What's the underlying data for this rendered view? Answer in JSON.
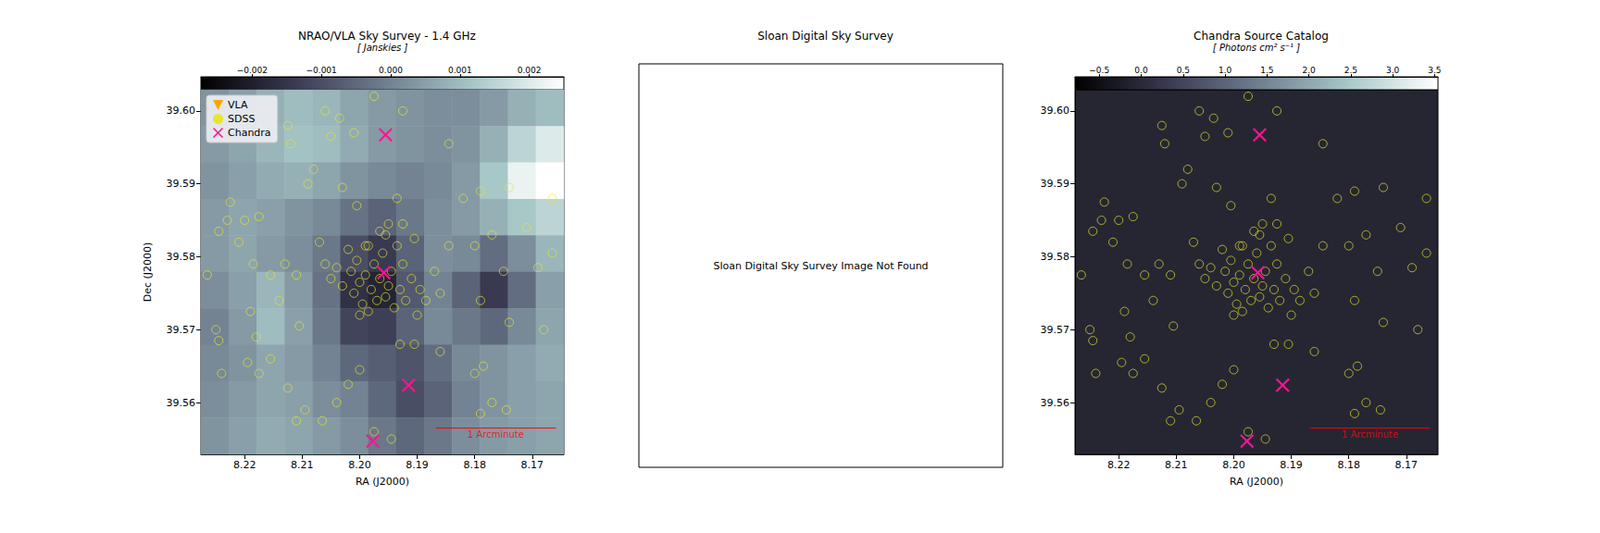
{
  "chart_data": [
    {
      "type": "scatter",
      "title": "NRAO/VLA Sky Survey - 1.4 GHz",
      "x_label": "RA (J2000)",
      "y_label": "Dec (J2000)",
      "xlim": [
        8.2276,
        8.1645
      ],
      "ylim": [
        39.5529,
        39.6029
      ],
      "xticks": [
        8.22,
        8.21,
        {
          "value": 8.2,
          "label": "8.20"
        },
        8.19,
        8.18,
        8.17
      ],
      "yticks": [
        39.56,
        39.57,
        39.58,
        39.59,
        {
          "value": 39.6,
          "label": "39.60"
        }
      ],
      "grid": false,
      "legend": "upper left",
      "series": [
        {
          "name": "VLA",
          "color": "#ffa500",
          "marker": "triangle-down",
          "x": [],
          "y": []
        },
        {
          "name": "SDSS",
          "color": "#e6e62a",
          "marker": "circle",
          "x": [
            8.2125,
            8.212,
            8.206,
            8.205,
            8.2035,
            8.201,
            8.1975,
            8.1925,
            8.1845,
            8.208,
            8.209,
            8.203,
            8.2005,
            8.1935,
            8.182,
            8.179,
            8.174,
            8.1665,
            8.1955,
            8.1925,
            8.1905,
            8.2245,
            8.2225,
            8.223,
            8.22,
            8.2175,
            8.2185,
            8.221,
            8.2265,
            8.225,
            8.2245,
            8.219,
            8.218,
            8.2155,
            8.214,
            8.213,
            8.211,
            8.2105,
            8.2175,
            8.2195,
            8.224,
            8.2125,
            8.2155,
            8.2095,
            8.211,
            8.207,
            8.206,
            8.205,
            8.204,
            8.203,
            8.202,
            8.2015,
            8.201,
            8.2005,
            8.2,
            8.1995,
            8.199,
            8.1985,
            8.198,
            8.1975,
            8.197,
            8.1965,
            8.196,
            8.1955,
            8.195,
            8.1945,
            8.194,
            8.193,
            8.1925,
            8.192,
            8.191,
            8.19,
            8.1895,
            8.1885,
            8.187,
            8.186,
            8.2,
            8.1985,
            8.1935,
            8.1965,
            8.195,
            8.199,
            8.1845,
            8.18,
            8.177,
            8.179,
            8.171,
            8.169,
            8.168,
            8.174,
            8.1665,
            8.175,
            8.2,
            8.193,
            8.1905,
            8.186,
            8.18,
            8.1785,
            8.177,
            8.179,
            8.1745,
            8.204,
            8.202,
            8.1975,
            8.1945,
            8.2065
          ],
          "y": [
            39.598,
            39.5955,
            39.6,
            39.5965,
            39.599,
            39.597,
            39.602,
            39.6,
            39.5955,
            39.592,
            39.59,
            39.5895,
            39.587,
            39.588,
            39.588,
            39.589,
            39.5895,
            39.588,
            39.583,
            39.5845,
            39.5825,
            39.5835,
            39.5875,
            39.585,
            39.585,
            39.5855,
            39.579,
            39.582,
            39.5775,
            39.57,
            39.5685,
            39.5725,
            39.569,
            39.5775,
            39.574,
            39.579,
            39.5775,
            39.5705,
            39.564,
            39.5655,
            39.564,
            39.562,
            39.566,
            39.559,
            39.5575,
            39.582,
            39.579,
            39.577,
            39.5785,
            39.576,
            39.581,
            39.578,
            39.575,
            39.5795,
            39.5765,
            39.5735,
            39.5775,
            39.5815,
            39.5755,
            39.579,
            39.574,
            39.577,
            39.5805,
            39.5745,
            39.576,
            39.578,
            39.573,
            39.5755,
            39.579,
            39.574,
            39.577,
            39.572,
            39.5755,
            39.574,
            39.578,
            39.575,
            39.572,
            39.5725,
            39.5815,
            39.5835,
            39.5845,
            39.5815,
            39.5815,
            39.5815,
            39.583,
            39.574,
            39.584,
            39.5785,
            39.57,
            39.571,
            39.5805,
            39.578,
            39.5645,
            39.568,
            39.568,
            39.567,
            39.564,
            39.565,
            39.56,
            39.5585,
            39.559,
            39.56,
            39.5625,
            39.556,
            39.555,
            39.5575
          ]
        },
        {
          "name": "Chandra",
          "color": "#ff1493",
          "marker": "x",
          "x": [
            8.1955,
            8.1958,
            8.1915,
            8.1977
          ],
          "y": [
            39.5967,
            39.5778,
            39.5624,
            39.5547
          ]
        }
      ],
      "colorbar": {
        "label": "[ Janskies ]",
        "range": [
          -0.00274,
          0.0025
        ],
        "ticks": [
          {
            "value": -0.002,
            "label": "−0.002"
          },
          {
            "value": -0.001,
            "label": "−0.001"
          },
          {
            "value": 0,
            "label": "0.000"
          },
          0.001,
          0.002
        ]
      },
      "radio_map": {
        "ra": [
          8.225,
          8.22,
          8.215,
          8.21,
          8.205,
          8.2,
          8.195,
          8.19,
          8.185,
          8.18,
          8.175,
          8.17,
          8.165
        ],
        "dec": [
          39.6,
          39.595,
          39.59,
          39.585,
          39.58,
          39.575,
          39.57,
          39.565,
          39.56,
          39.555
        ],
        "values": [
          [
            0.0003,
            0.0005,
            0.0008,
            0.001,
            0.0009,
            0.0006,
            0.0004,
            0.0003,
            0.0002,
            0.0002,
            0.0004,
            0.0008,
            0.001
          ],
          [
            0.0004,
            0.0006,
            0.0009,
            0.0011,
            0.001,
            0.0007,
            0.0004,
            0.0003,
            0.0002,
            0.0003,
            0.0008,
            0.0015,
            0.002
          ],
          [
            0.0003,
            0.0005,
            0.0007,
            0.0008,
            0.0006,
            0.0003,
            0.0001,
            0.0,
            0.0001,
            0.0004,
            0.0012,
            0.0022,
            0.0025
          ],
          [
            0.0004,
            0.0006,
            0.0005,
            0.0003,
            0.0001,
            -0.0003,
            -0.0006,
            -0.0002,
            0.0002,
            0.0004,
            0.0008,
            0.0012,
            0.0015
          ],
          [
            0.0004,
            0.0006,
            0.0004,
            0.0002,
            -0.0002,
            -0.001,
            -0.0014,
            -0.0006,
            0.0002,
            0.0001,
            -0.0004,
            0.0002,
            0.0009
          ],
          [
            0.0002,
            0.0005,
            0.0009,
            0.0004,
            -0.0003,
            -0.0016,
            -0.0019,
            -0.0008,
            0.0,
            -0.0006,
            -0.0014,
            -0.0004,
            0.0005
          ],
          [
            0.0,
            0.0004,
            0.001,
            0.0005,
            -0.0002,
            -0.0012,
            -0.0013,
            -0.0006,
            0.0001,
            -0.0002,
            -0.0005,
            0.0001,
            0.0006
          ],
          [
            0.0001,
            0.0003,
            0.0006,
            0.0004,
            0.0,
            -0.0005,
            -0.0007,
            -0.0009,
            -0.0004,
            0.0001,
            0.0003,
            0.0005,
            0.0007
          ],
          [
            0.0002,
            0.0004,
            0.0006,
            0.0005,
            0.0002,
            0.0,
            -0.0005,
            -0.001,
            -0.0006,
            0.0,
            0.0003,
            0.0005,
            0.0006
          ],
          [
            0.0003,
            0.0005,
            0.0007,
            0.0006,
            0.0004,
            0.0002,
            -0.0002,
            -0.0005,
            -0.0002,
            0.0002,
            0.0004,
            0.0005,
            0.0006
          ]
        ]
      },
      "scale_bar": {
        "label": "1 Arcminute",
        "color": "#ff0000",
        "ra": [
          8.1868,
          8.1659
        ],
        "dec": 39.5565
      }
    },
    {
      "type": "image_placeholder",
      "title": "Sloan Digital Sky Survey",
      "message": "Sloan Digital Sky Survey Image Not Found"
    },
    {
      "type": "scatter",
      "title": "Chandra Source Catalog",
      "x_label": "RA (J2000)",
      "xlim": [
        8.2276,
        8.1645
      ],
      "ylim": [
        39.5529,
        39.6029
      ],
      "xticks": [
        8.22,
        8.21,
        {
          "value": 8.2,
          "label": "8.20"
        },
        8.19,
        8.18,
        8.17
      ],
      "yticks": [
        39.56,
        39.57,
        39.58,
        39.59,
        {
          "value": 39.6,
          "label": "39.60"
        }
      ],
      "grid": false,
      "series": [
        {
          "name": "SDSS",
          "color": "#e6e62a",
          "marker": "circle",
          "x": [
            8.2125,
            8.212,
            8.206,
            8.205,
            8.2035,
            8.201,
            8.1975,
            8.1925,
            8.1845,
            8.208,
            8.209,
            8.203,
            8.2005,
            8.1935,
            8.182,
            8.179,
            8.174,
            8.1665,
            8.1955,
            8.1925,
            8.1905,
            8.2245,
            8.2225,
            8.223,
            8.22,
            8.2175,
            8.2185,
            8.221,
            8.2265,
            8.225,
            8.2245,
            8.219,
            8.218,
            8.2155,
            8.214,
            8.213,
            8.211,
            8.2105,
            8.2175,
            8.2195,
            8.224,
            8.2125,
            8.2155,
            8.2095,
            8.211,
            8.207,
            8.206,
            8.205,
            8.204,
            8.203,
            8.202,
            8.2015,
            8.201,
            8.2005,
            8.2,
            8.1995,
            8.199,
            8.1985,
            8.198,
            8.1975,
            8.197,
            8.1965,
            8.196,
            8.1955,
            8.195,
            8.1945,
            8.194,
            8.193,
            8.1925,
            8.192,
            8.191,
            8.19,
            8.1895,
            8.1885,
            8.187,
            8.186,
            8.2,
            8.1985,
            8.1935,
            8.1965,
            8.195,
            8.199,
            8.1845,
            8.18,
            8.177,
            8.179,
            8.171,
            8.169,
            8.168,
            8.174,
            8.1665,
            8.175,
            8.2,
            8.193,
            8.1905,
            8.186,
            8.18,
            8.1785,
            8.177,
            8.179,
            8.1745,
            8.204,
            8.202,
            8.1975,
            8.1945,
            8.2065
          ],
          "y": [
            39.598,
            39.5955,
            39.6,
            39.5965,
            39.599,
            39.597,
            39.602,
            39.6,
            39.5955,
            39.592,
            39.59,
            39.5895,
            39.587,
            39.588,
            39.588,
            39.589,
            39.5895,
            39.588,
            39.583,
            39.5845,
            39.5825,
            39.5835,
            39.5875,
            39.585,
            39.585,
            39.5855,
            39.579,
            39.582,
            39.5775,
            39.57,
            39.5685,
            39.5725,
            39.569,
            39.5775,
            39.574,
            39.579,
            39.5775,
            39.5705,
            39.564,
            39.5655,
            39.564,
            39.562,
            39.566,
            39.559,
            39.5575,
            39.582,
            39.579,
            39.577,
            39.5785,
            39.576,
            39.581,
            39.578,
            39.575,
            39.5795,
            39.5765,
            39.5735,
            39.5775,
            39.5815,
            39.5755,
            39.579,
            39.574,
            39.577,
            39.5805,
            39.5745,
            39.576,
            39.578,
            39.573,
            39.5755,
            39.579,
            39.574,
            39.577,
            39.572,
            39.5755,
            39.574,
            39.578,
            39.575,
            39.572,
            39.5725,
            39.5815,
            39.5835,
            39.5845,
            39.5815,
            39.5815,
            39.5815,
            39.583,
            39.574,
            39.584,
            39.5785,
            39.57,
            39.571,
            39.5805,
            39.578,
            39.5645,
            39.568,
            39.568,
            39.567,
            39.564,
            39.565,
            39.56,
            39.5585,
            39.559,
            39.56,
            39.5625,
            39.556,
            39.555,
            39.5575
          ]
        },
        {
          "name": "Chandra",
          "color": "#ff1493",
          "marker": "x",
          "x": [
            8.1955,
            8.1958,
            8.1915,
            8.1977
          ],
          "y": [
            39.5967,
            39.5778,
            39.5624,
            39.5547
          ]
        }
      ],
      "colorbar": {
        "label": "[ Photons cm² s⁻¹ ]",
        "range": [
          -0.79,
          3.54
        ],
        "ticks": [
          {
            "value": -0.5,
            "label": "−0.5"
          },
          {
            "value": 0,
            "label": "0.0"
          },
          0.5,
          {
            "value": 1,
            "label": "1.0"
          },
          1.5,
          {
            "value": 2,
            "label": "2.0"
          },
          2.5,
          {
            "value": 3,
            "label": "3.0"
          },
          3.5
        ]
      },
      "scale_bar": {
        "label": "1 Arcminute",
        "color": "#ff0000",
        "ra": [
          8.1868,
          8.1659
        ],
        "dec": 39.5565
      }
    }
  ]
}
